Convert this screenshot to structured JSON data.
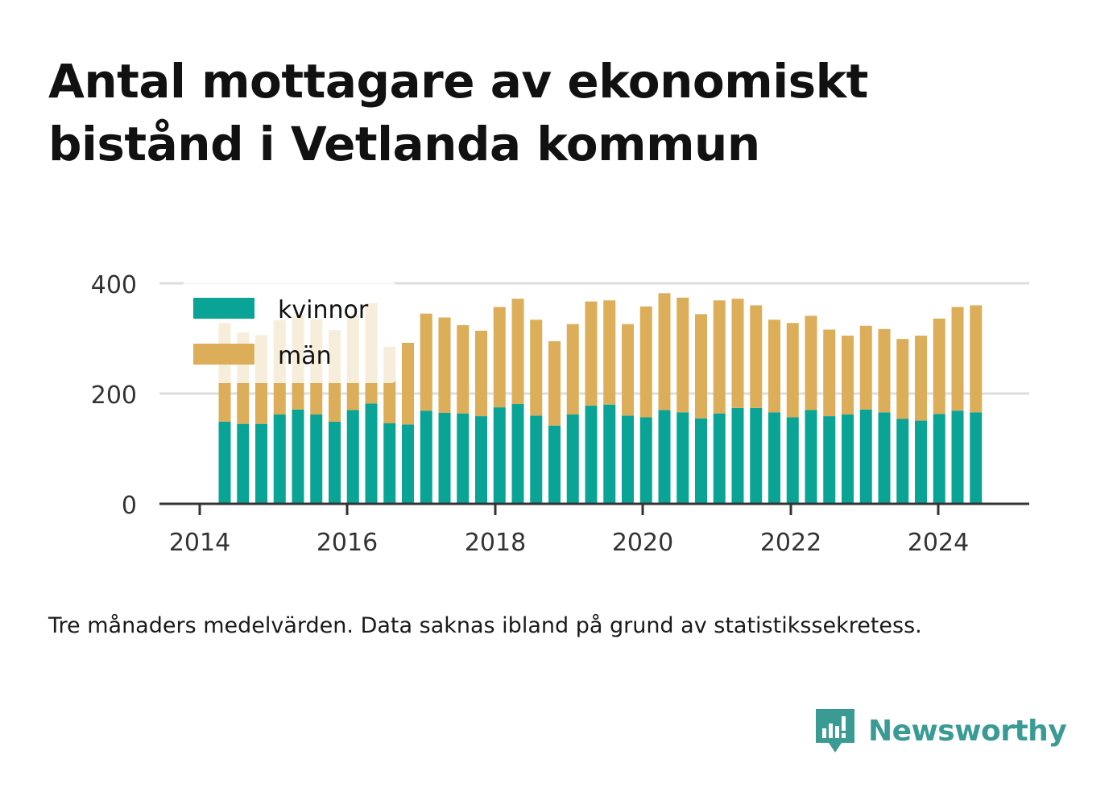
{
  "header": {
    "title_line1": "Antal mottagare av ekonomiskt",
    "title_line2": "bistånd i Vetlanda kommun"
  },
  "caption": "Tre månaders medelvärden. Data saknas ibland på grund av statistikssekretess.",
  "brand": {
    "name": "Newsworthy",
    "icon": "newsworthy-logo-icon"
  },
  "colors": {
    "kvinnor": "#0aa496",
    "man": "#dcae5a",
    "grid": "#dddddd",
    "axis": "#333333"
  },
  "chart_data": {
    "type": "bar",
    "stacked": true,
    "x": [
      "2014-Q3",
      "2014-Q4",
      "2015-Q1",
      "2015-Q2",
      "2015-Q3",
      "2015-Q4",
      "2016-Q1",
      "2016-Q2",
      "2016-Q3",
      "2016-Q4",
      "2017-Q1",
      "2017-Q2",
      "2017-Q3",
      "2017-Q4",
      "2018-Q1",
      "2018-Q2",
      "2018-Q3",
      "2018-Q4",
      "2019-Q1",
      "2019-Q2",
      "2019-Q3",
      "2019-Q4",
      "2020-Q1",
      "2020-Q2",
      "2020-Q3",
      "2020-Q4",
      "2021-Q1",
      "2021-Q2",
      "2021-Q3",
      "2021-Q4",
      "2022-Q1",
      "2022-Q2",
      "2022-Q3",
      "2022-Q4",
      "2023-Q1",
      "2023-Q2",
      "2023-Q3",
      "2023-Q4",
      "2024-Q1",
      "2024-Q2",
      "2024-Q3",
      "2024-Q4"
    ],
    "series": [
      {
        "name": "kvinnor",
        "values": [
          149,
          145,
          145,
          162,
          171,
          162,
          149,
          170,
          182,
          146,
          144,
          169,
          165,
          164,
          159,
          175,
          181,
          160,
          142,
          162,
          178,
          180,
          160,
          157,
          170,
          166,
          155,
          164,
          174,
          174,
          166,
          157,
          170,
          159,
          162,
          171,
          166,
          154,
          151,
          163,
          169,
          166
        ]
      },
      {
        "name": "män",
        "values": [
          179,
          166,
          161,
          171,
          170,
          173,
          166,
          173,
          182,
          139,
          148,
          176,
          173,
          160,
          155,
          182,
          191,
          174,
          153,
          164,
          189,
          189,
          166,
          201,
          212,
          208,
          189,
          205,
          198,
          186,
          168,
          171,
          171,
          157,
          143,
          152,
          151,
          145,
          154,
          173,
          188,
          194
        ]
      }
    ],
    "xticks": [
      "2014",
      "2016",
      "2018",
      "2020",
      "2022",
      "2024"
    ],
    "yticks": [
      "0",
      "200",
      "400"
    ],
    "ylim": [
      0,
      400
    ],
    "legend": {
      "position": "top-left",
      "labels": [
        "kvinnor",
        "män"
      ]
    },
    "grid": true
  }
}
